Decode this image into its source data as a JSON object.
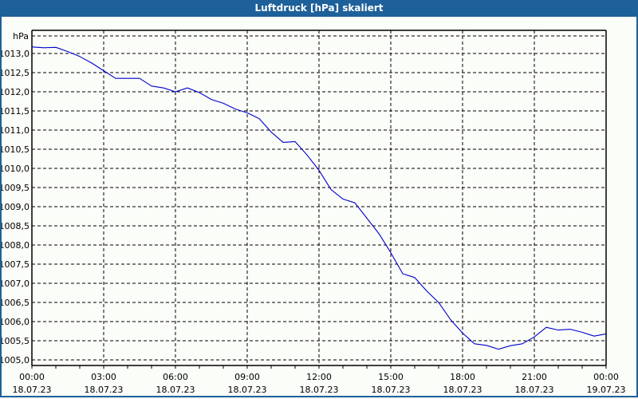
{
  "window": {
    "title": "Luftdruck [hPa] skaliert"
  },
  "colors": {
    "titlebar": "#1e6099",
    "line": "#0000cc",
    "grid": "#000000",
    "background": "#fbfdf9"
  },
  "chart_data": {
    "type": "line",
    "title": "Luftdruck [hPa] skaliert",
    "xlabel": "",
    "ylabel": "hPa",
    "ylim": [
      1005.0,
      1013.0
    ],
    "ytick_step": 0.5,
    "yticks": [
      "1013,0",
      "1012,5",
      "1012,0",
      "1011,5",
      "1011,0",
      "1010,5",
      "1010,0",
      "1009,5",
      "1009,0",
      "1008,5",
      "1008,0",
      "1007,5",
      "1007,0",
      "1006,5",
      "1006,0",
      "1005,5",
      "1005,0"
    ],
    "xticks": [
      {
        "time": "00:00",
        "date": "18.07.23"
      },
      {
        "time": "03:00",
        "date": "18.07.23"
      },
      {
        "time": "06:00",
        "date": "18.07.23"
      },
      {
        "time": "09:00",
        "date": "18.07.23"
      },
      {
        "time": "12:00",
        "date": "18.07.23"
      },
      {
        "time": "15:00",
        "date": "18.07.23"
      },
      {
        "time": "18:00",
        "date": "18.07.23"
      },
      {
        "time": "21:00",
        "date": "18.07.23"
      },
      {
        "time": "00:00",
        "date": "19.07.23"
      }
    ],
    "grid": true,
    "legend": null,
    "series": [
      {
        "name": "Luftdruck",
        "x_hours": [
          0,
          0.5,
          1,
          1.5,
          2,
          2.5,
          3,
          3.5,
          4,
          4.5,
          5,
          5.5,
          6,
          6.5,
          7,
          7.5,
          8,
          8.5,
          9,
          9.5,
          10,
          10.5,
          11,
          11.5,
          12,
          12.5,
          13,
          13.5,
          14,
          14.5,
          15,
          15.5,
          16,
          16.5,
          17,
          17.5,
          18,
          18.5,
          19,
          19.5,
          20,
          20.5,
          21,
          21.5,
          22,
          22.5,
          23,
          23.5,
          24
        ],
        "values": [
          1013.17,
          1013.15,
          1013.16,
          1013.05,
          1012.92,
          1012.75,
          1012.55,
          1012.35,
          1012.35,
          1012.35,
          1012.15,
          1012.1,
          1012.0,
          1012.1,
          1011.98,
          1011.8,
          1011.7,
          1011.55,
          1011.45,
          1011.3,
          1010.95,
          1010.68,
          1010.7,
          1010.35,
          1009.95,
          1009.45,
          1009.2,
          1009.1,
          1008.7,
          1008.3,
          1007.8,
          1007.25,
          1007.15,
          1006.8,
          1006.5,
          1006.05,
          1005.7,
          1005.42,
          1005.38,
          1005.28,
          1005.37,
          1005.42,
          1005.6,
          1005.85,
          1005.78,
          1005.8,
          1005.72,
          1005.62,
          1005.68
        ]
      }
    ]
  }
}
